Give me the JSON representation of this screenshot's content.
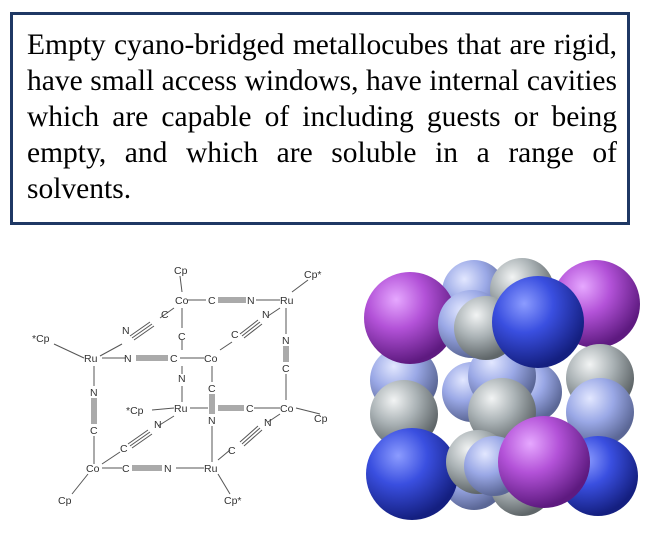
{
  "description": "Empty cyano-bridged metallocubes that are rigid, have small access windows, have internal cavities which are capable of including guests or being empty, and which are soluble in a range of solvents.",
  "structure": {
    "cp": "Cp",
    "cp_star": "Cp*",
    "star_cp": "*Cp",
    "co": "Co",
    "ru": "Ru",
    "c": "C",
    "n": "N"
  },
  "colors": {
    "border": "#1f3864",
    "purple": "#b352d8",
    "blue": "#3a4fe0",
    "light_blue": "#9aa8e6",
    "gray": "#a9b1b4"
  }
}
